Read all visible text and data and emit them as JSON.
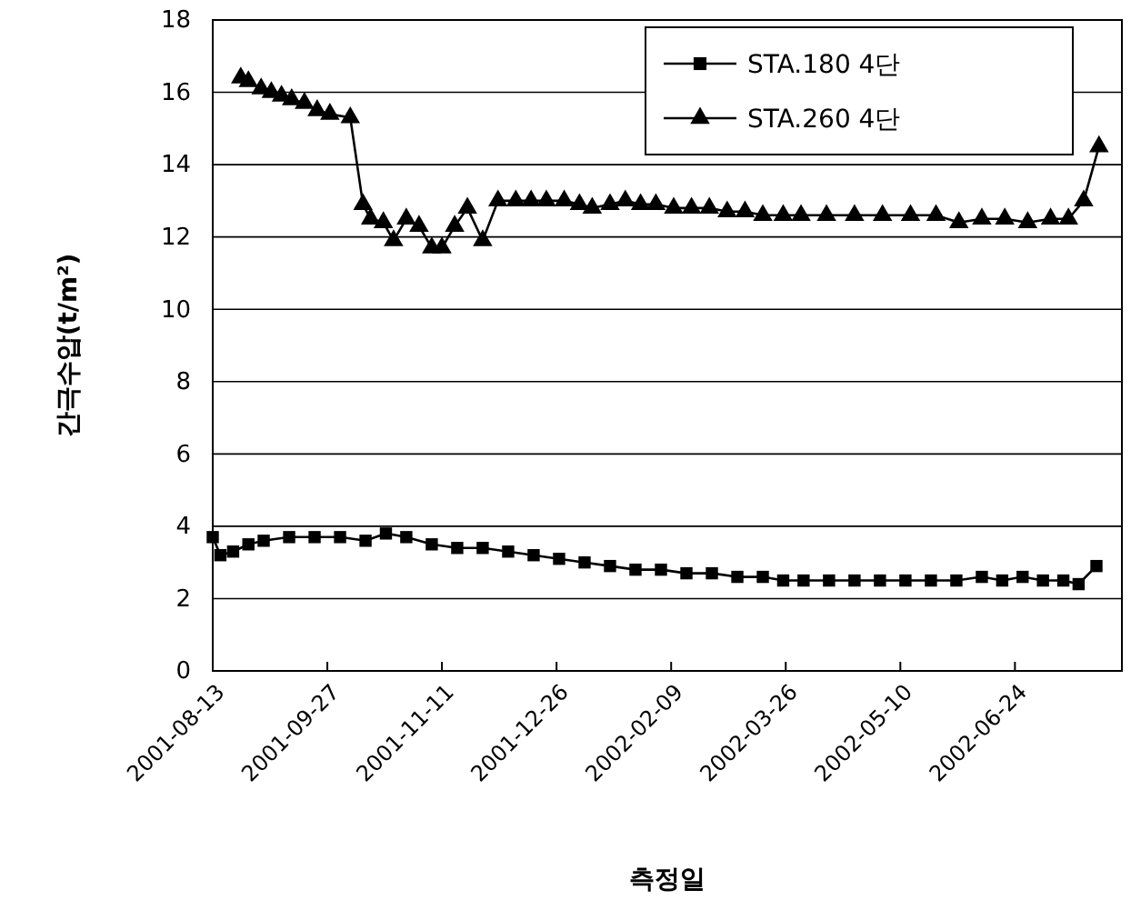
{
  "chart_data": {
    "type": "line",
    "xlabel": "측정일",
    "ylabel": "간극수압(t/m²)",
    "xlim": [
      "2001-08-13",
      "2002-08-05"
    ],
    "xticks": [
      "2001-08-13",
      "2001-09-27",
      "2001-11-11",
      "2001-12-26",
      "2002-02-09",
      "2002-03-26",
      "2002-05-10",
      "2002-06-24"
    ],
    "ylim": [
      0,
      18
    ],
    "yticks": [
      0,
      2,
      4,
      6,
      8,
      10,
      12,
      14,
      16,
      18
    ],
    "grid": "y",
    "legend": "top right",
    "series": [
      {
        "name": "STA.180 4단",
        "color": "#000000",
        "marker": "square",
        "x": [
          "2001-08-13",
          "2001-08-16",
          "2001-08-21",
          "2001-08-27",
          "2001-09-02",
          "2001-09-12",
          "2001-09-22",
          "2001-10-02",
          "2001-10-12",
          "2001-10-20",
          "2001-10-28",
          "2001-11-07",
          "2001-11-17",
          "2001-11-27",
          "2001-12-07",
          "2001-12-17",
          "2001-12-27",
          "2002-01-06",
          "2002-01-16",
          "2002-01-26",
          "2002-02-05",
          "2002-02-15",
          "2002-02-25",
          "2002-03-07",
          "2002-03-17",
          "2002-03-25",
          "2002-04-02",
          "2002-04-12",
          "2002-04-22",
          "2002-05-02",
          "2002-05-12",
          "2002-05-22",
          "2002-06-01",
          "2002-06-11",
          "2002-06-19",
          "2002-06-27",
          "2002-07-05",
          "2002-07-13",
          "2002-07-19",
          "2002-07-26"
        ],
        "values": [
          3.7,
          3.2,
          3.3,
          3.5,
          3.6,
          3.7,
          3.7,
          3.7,
          3.6,
          3.8,
          3.7,
          3.5,
          3.4,
          3.4,
          3.3,
          3.2,
          3.1,
          3.0,
          2.9,
          2.8,
          2.8,
          2.7,
          2.7,
          2.6,
          2.6,
          2.5,
          2.5,
          2.5,
          2.5,
          2.5,
          2.5,
          2.5,
          2.5,
          2.6,
          2.5,
          2.6,
          2.5,
          2.5,
          2.4,
          2.9
        ]
      },
      {
        "name": "STA.260 4단",
        "color": "#000000",
        "marker": "triangle",
        "x": [
          "2001-08-24",
          "2001-08-27",
          "2001-09-01",
          "2001-09-05",
          "2001-09-09",
          "2001-09-13",
          "2001-09-18",
          "2001-09-23",
          "2001-09-28",
          "2001-10-06",
          "2001-10-11",
          "2001-10-14",
          "2001-10-19",
          "2001-10-23",
          "2001-10-28",
          "2001-11-02",
          "2001-11-07",
          "2001-11-11",
          "2001-11-16",
          "2001-11-21",
          "2001-11-27",
          "2001-12-03",
          "2001-12-10",
          "2001-12-16",
          "2001-12-22",
          "2001-12-29",
          "2002-01-04",
          "2002-01-09",
          "2002-01-16",
          "2002-01-22",
          "2002-01-28",
          "2002-02-03",
          "2002-02-10",
          "2002-02-17",
          "2002-02-24",
          "2002-03-03",
          "2002-03-10",
          "2002-03-17",
          "2002-03-25",
          "2002-04-01",
          "2002-04-11",
          "2002-04-22",
          "2002-05-03",
          "2002-05-14",
          "2002-05-24",
          "2002-06-02",
          "2002-06-11",
          "2002-06-20",
          "2002-06-29",
          "2002-07-08",
          "2002-07-15",
          "2002-07-21",
          "2002-07-27"
        ],
        "values": [
          16.4,
          16.3,
          16.1,
          16.0,
          15.9,
          15.8,
          15.7,
          15.5,
          15.4,
          15.3,
          12.9,
          12.5,
          12.4,
          11.9,
          12.5,
          12.3,
          11.7,
          11.7,
          12.3,
          12.8,
          11.9,
          13.0,
          13.0,
          13.0,
          13.0,
          13.0,
          12.9,
          12.8,
          12.9,
          13.0,
          12.9,
          12.9,
          12.8,
          12.8,
          12.8,
          12.7,
          12.7,
          12.6,
          12.6,
          12.6,
          12.6,
          12.6,
          12.6,
          12.6,
          12.6,
          12.4,
          12.5,
          12.5,
          12.4,
          12.5,
          12.5,
          13.0,
          14.5
        ]
      }
    ]
  }
}
